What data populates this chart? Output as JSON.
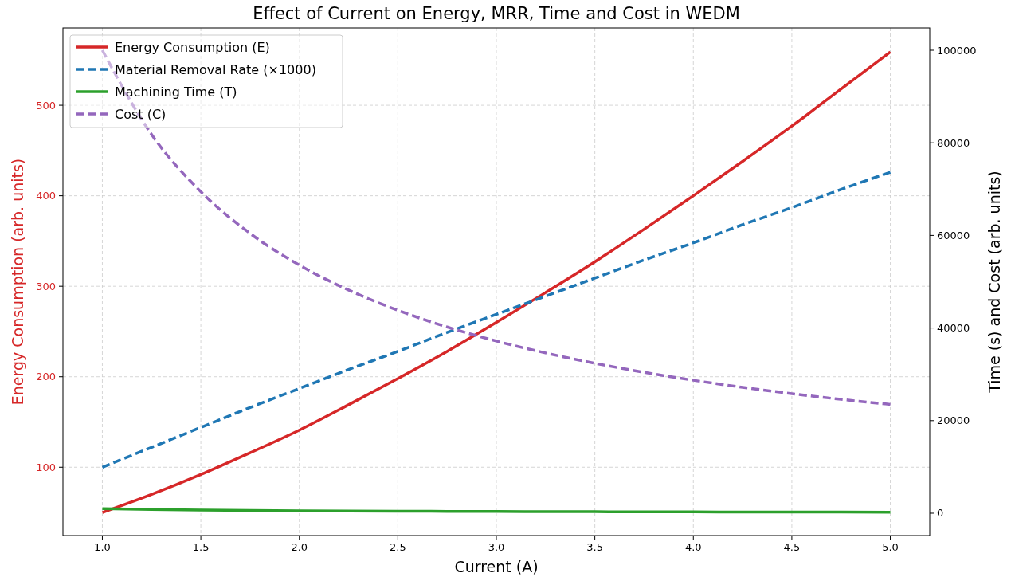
{
  "chart_data": {
    "type": "line",
    "title": "Effect of Current on Energy, MRR, Time and Cost in WEDM",
    "xlabel": "Current (A)",
    "ylabel": "Energy Consumption (arb. units)",
    "y2label": "Time (s) and Cost (arb. units)",
    "x": [
      1,
      1.25,
      1.5,
      1.75,
      2,
      2.25,
      2.5,
      2.75,
      3,
      3.25,
      3.5,
      3.75,
      4,
      4.25,
      4.5,
      4.75,
      5
    ],
    "series": [
      {
        "name": "Energy Consumption (E)",
        "color": "#d62728",
        "line_style": "solid",
        "values": [
          50,
          70,
          92,
          116,
          141,
          169,
          198,
          228,
          260,
          293,
          327,
          363,
          400,
          438,
          477,
          518,
          559
        ]
      },
      {
        "name": "Material Removal Rate (×1000)",
        "color": "#1f77b4",
        "line_style": "dashed",
        "values": [
          100,
          122,
          144,
          166,
          187,
          208,
          228,
          249,
          269,
          289,
          309,
          329,
          348,
          368,
          387,
          407,
          426
        ]
      },
      {
        "name": "Machining Time (T)",
        "color": "#2ca02c",
        "line_style": "solid",
        "axis": "y2",
        "values": [
          1000,
          818,
          694,
          604,
          536,
          482,
          438,
          402,
          372,
          346,
          324,
          304,
          287,
          272,
          258,
          246,
          235
        ]
      },
      {
        "name": "Cost (C)",
        "color": "#9467bd",
        "line_style": "dashed",
        "axis": "y2",
        "values": [
          100000,
          81800,
          69440,
          60430,
          53590,
          48200,
          43840,
          40230,
          37190,
          34620,
          32380,
          30440,
          28720,
          27200,
          25830,
          24600,
          23500
        ]
      }
    ],
    "xlim": [
      0.8,
      5.2
    ],
    "xticks": [
      {
        "value": 1,
        "label": "1.0"
      },
      {
        "value": 1.5,
        "label": "1.5"
      },
      {
        "value": 2,
        "label": "2.0"
      },
      {
        "value": 2.5,
        "label": "2.5"
      },
      {
        "value": 3,
        "label": "3.0"
      },
      {
        "value": 3.5,
        "label": "3.5"
      },
      {
        "value": 4,
        "label": "4.0"
      },
      {
        "value": 4.5,
        "label": "4.5"
      },
      {
        "value": 5,
        "label": "5.0"
      }
    ],
    "ylim": [
      24.5,
      585.5
    ],
    "yticks": [
      100,
      200,
      300,
      400,
      500
    ],
    "y2lim": [
      -4820,
      104820
    ],
    "y2ticks": [
      0,
      20000,
      40000,
      60000,
      80000,
      100000
    ],
    "grid": true,
    "legend": "top left"
  }
}
